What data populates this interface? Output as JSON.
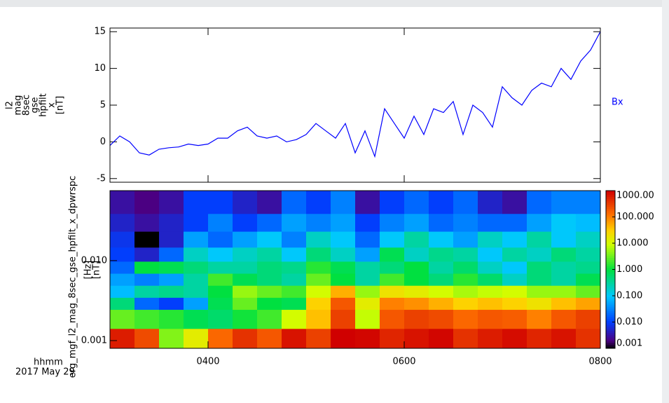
{
  "chart_data": [
    {
      "type": "line",
      "ylabel_lines": [
        "l2",
        "mag",
        "8sec",
        "gse",
        "hpfilt",
        "x",
        "[nT]"
      ],
      "x": [
        3.0,
        3.1,
        3.2,
        3.3,
        3.4,
        3.5,
        3.6,
        3.7,
        3.8,
        3.9,
        4.0,
        4.1,
        4.2,
        4.3,
        4.4,
        4.5,
        4.6,
        4.7,
        4.8,
        4.9,
        5.0,
        5.1,
        5.2,
        5.3,
        5.4,
        5.5,
        5.6,
        5.7,
        5.8,
        5.9,
        6.0,
        6.1,
        6.2,
        6.3,
        6.4,
        6.5,
        6.6,
        6.7,
        6.8,
        6.9,
        7.0,
        7.1,
        7.2,
        7.3,
        7.4,
        7.5,
        7.6,
        7.7,
        7.8,
        7.9,
        8.0
      ],
      "series": [
        {
          "name": "Bx",
          "color": "#0000ff",
          "values": [
            -0.5,
            0.8,
            0,
            -1.5,
            -1.8,
            -1.0,
            -0.8,
            -0.7,
            -0.3,
            -0.5,
            -0.3,
            0.5,
            0.5,
            1.5,
            2.0,
            0.8,
            0.5,
            0.8,
            0,
            0.3,
            1.0,
            2.5,
            1.5,
            0.5,
            2.5,
            -1.5,
            1.5,
            -2.0,
            4.5,
            2.5,
            0.5,
            3.5,
            1.0,
            4.5,
            4.0,
            5.5,
            1.0,
            5.0,
            4.0,
            2.0,
            7.5,
            6.0,
            5.0,
            7.0,
            8.0,
            7.5,
            10.0,
            8.5,
            11.0,
            12.5,
            15.0
          ]
        }
      ],
      "xlim": [
        3,
        8
      ],
      "ylim": [
        -5.5,
        15.5
      ],
      "yticks": [
        -5,
        0,
        5,
        10,
        15
      ]
    },
    {
      "type": "heatmap",
      "name": "erg_mgf_l2_mag_8sec_gse_hpfilt_x_dpwrspc",
      "ylabel_lines": [
        "[Hz]",
        "[nT]"
      ],
      "xlabel": "hhmm",
      "date": "2017 May 29",
      "x": [
        3.125,
        3.375,
        3.625,
        3.875,
        4.125,
        4.375,
        4.625,
        4.875,
        5.125,
        5.375,
        5.625,
        5.875,
        6.125,
        6.375,
        6.625,
        6.875,
        7.125,
        7.375,
        7.625,
        7.875
      ],
      "y": [
        0.001,
        0.002,
        0.003,
        0.004,
        0.006,
        0.008,
        0.012,
        0.018,
        0.03,
        0.05
      ],
      "z": [
        [
          600,
          250,
          4,
          15,
          150,
          400,
          200,
          700,
          300,
          1500,
          900,
          500,
          700,
          900,
          400,
          600,
          800,
          500,
          700,
          400
        ],
        [
          3,
          2,
          1.5,
          0.8,
          0.6,
          1.2,
          2,
          10,
          40,
          300,
          8,
          200,
          300,
          250,
          150,
          200,
          180,
          100,
          200,
          300
        ],
        [
          0.5,
          0.02,
          0.01,
          0.05,
          0.8,
          3,
          1,
          0.8,
          30,
          200,
          15,
          100,
          80,
          50,
          30,
          40,
          30,
          20,
          40,
          60
        ],
        [
          0.08,
          0.3,
          0.4,
          0.3,
          1,
          5,
          3,
          2,
          10,
          50,
          5,
          20,
          15,
          10,
          6,
          8,
          10,
          5,
          5,
          3
        ],
        [
          0.05,
          0.03,
          0.05,
          0.3,
          2,
          0.8,
          0.5,
          0.3,
          3,
          1,
          0.3,
          2,
          1,
          0.5,
          1.5,
          0.6,
          0.2,
          0.5,
          0.3,
          0.8
        ],
        [
          0.02,
          1,
          0.8,
          0.5,
          0.3,
          0.3,
          0.5,
          0.4,
          1.5,
          0.8,
          0.3,
          0.5,
          1,
          0.3,
          0.6,
          0.2,
          0.1,
          0.5,
          0.3,
          0.4
        ],
        [
          0.01,
          0.005,
          0.02,
          0.2,
          0.1,
          0.2,
          0.3,
          0.1,
          0.5,
          0.2,
          0.05,
          0.8,
          0.2,
          0.4,
          0.3,
          0.1,
          0.3,
          0.2,
          0.5,
          0.3
        ],
        [
          0.008,
          0.001,
          0.005,
          0.05,
          0.02,
          0.05,
          0.1,
          0.03,
          0.2,
          0.1,
          0.02,
          0.1,
          0.3,
          0.1,
          0.05,
          0.2,
          0.1,
          0.3,
          0.1,
          0.2
        ],
        [
          0.005,
          0.003,
          0.005,
          0.01,
          0.03,
          0.01,
          0.02,
          0.05,
          0.03,
          0.05,
          0.01,
          0.03,
          0.05,
          0.02,
          0.03,
          0.02,
          0.02,
          0.05,
          0.1,
          0.08
        ],
        [
          0.003,
          0.002,
          0.003,
          0.01,
          0.01,
          0.005,
          0.003,
          0.02,
          0.01,
          0.03,
          0.003,
          0.01,
          0.02,
          0.01,
          0.02,
          0.005,
          0.003,
          0.02,
          0.03,
          0.03
        ]
      ],
      "xlim": [
        3,
        8
      ],
      "ylim": [
        0.0008,
        0.075
      ],
      "log_y": true,
      "yticks": [
        0.001,
        {
          "value": 0.01,
          "label": "0.010"
        }
      ],
      "xticks": [
        {
          "value": 4,
          "label": "0400"
        },
        {
          "value": 6,
          "label": "0600"
        },
        {
          "value": 8,
          "label": "0800"
        }
      ],
      "colorbar": {
        "lim": [
          0.001,
          1000
        ],
        "log": true,
        "ticks": [
          {
            "value": 1000,
            "label": "1000.00"
          },
          {
            "value": 100,
            "label": "100.000"
          },
          {
            "value": 10,
            "label": "10.000"
          },
          {
            "value": 1,
            "label": "1.000"
          },
          {
            "value": 0.1,
            "label": "0.100"
          },
          {
            "value": 0.01,
            "label": "0.010"
          },
          0.001
        ]
      }
    }
  ]
}
